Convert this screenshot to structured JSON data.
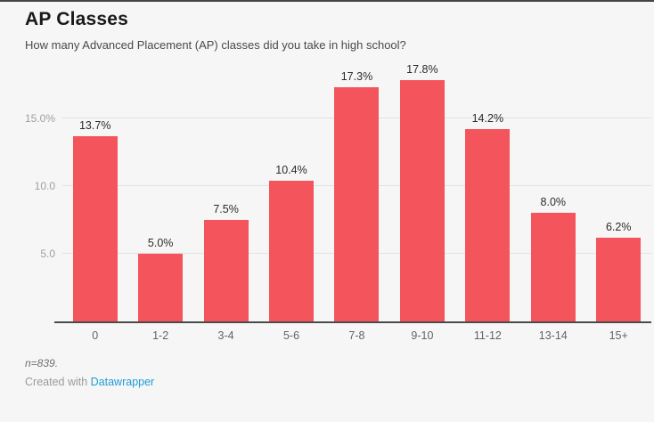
{
  "page": {
    "background_color": "#f6f6f6",
    "top_border_color": "#444444"
  },
  "header": {
    "title": "AP Classes",
    "subtitle": "How many Advanced Placement (AP) classes did you take in high school?"
  },
  "chart_data": {
    "type": "bar",
    "title": "AP Classes",
    "subtitle": "How many Advanced Placement (AP) classes did you take in high school?",
    "categories": [
      "0",
      "1-2",
      "3-4",
      "5-6",
      "7-8",
      "9-10",
      "11-12",
      "13-14",
      "15+"
    ],
    "values": [
      13.7,
      5.0,
      7.5,
      10.4,
      17.3,
      17.8,
      14.2,
      8.0,
      6.2
    ],
    "value_labels": [
      "13.7%",
      "5.0%",
      "7.5%",
      "10.4%",
      "17.3%",
      "17.8%",
      "14.2%",
      "8.0%",
      "6.2%"
    ],
    "xlabel": "",
    "ylabel": "",
    "ylim": [
      0,
      19.8
    ],
    "y_ticks": [
      {
        "value": 5,
        "label": "5.0"
      },
      {
        "value": 10,
        "label": "10.0"
      },
      {
        "value": 15,
        "label": "15.0%"
      }
    ],
    "grid": true,
    "legend": false,
    "bar_color": "#f4545c",
    "gridline_color": "#e2e2e2",
    "baseline_color": "#4b4b4b"
  },
  "footer": {
    "note": "n=839.",
    "credit_prefix": "Created with ",
    "credit_link_label": "Datawrapper",
    "credit_link_color": "#1f9bd7"
  }
}
